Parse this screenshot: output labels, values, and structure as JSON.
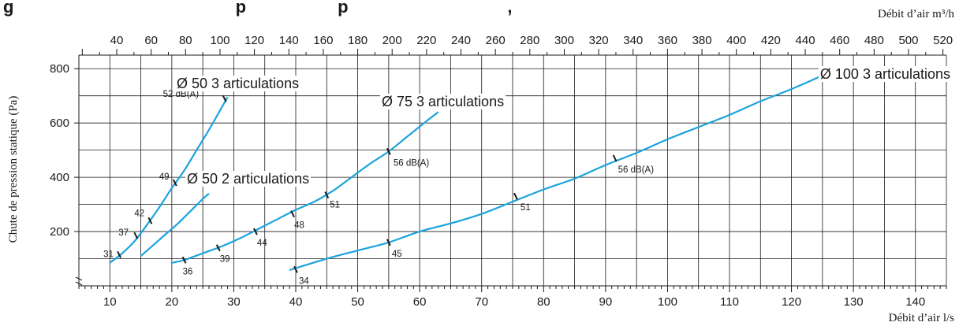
{
  "title_fragment": "g                                              p                   p                                 ,",
  "chart_data": {
    "type": "line",
    "title": "",
    "xlabel": "Débit d’air l/s",
    "ylabel": "Chute de pression statique (Pa)",
    "x2label": "Débit d’air m³/h",
    "xlim": [
      5,
      145
    ],
    "ylim": [
      0,
      850
    ],
    "x_ticks": [
      10,
      20,
      30,
      40,
      50,
      60,
      70,
      80,
      90,
      100,
      110,
      120,
      130,
      140
    ],
    "y_ticks": [
      200,
      400,
      600,
      800
    ],
    "x2_ticks": [
      40,
      60,
      80,
      100,
      120,
      140,
      160,
      180,
      200,
      220,
      240,
      260,
      280,
      300,
      320,
      340,
      360,
      380,
      400,
      420,
      440,
      460,
      480,
      500,
      520
    ],
    "grid": true,
    "line_color": "#1ba4dc",
    "series": [
      {
        "name": "Ø 50 3 articulations",
        "x": [
          10,
          12,
          14,
          16,
          18,
          20,
          22,
          24,
          26,
          28,
          29
        ],
        "y": [
          85,
          120,
          165,
          225,
          290,
          360,
          425,
          500,
          575,
          655,
          695
        ],
        "markers": [
          {
            "x": 11.5,
            "y": 115,
            "label": "31"
          },
          {
            "x": 14.2,
            "y": 185,
            "label": "37"
          },
          {
            "x": 16.5,
            "y": 240,
            "label": "42"
          },
          {
            "x": 20.5,
            "y": 380,
            "label": "49"
          },
          {
            "x": 28.5,
            "y": 690,
            "label": "52 dB(A)"
          }
        ]
      },
      {
        "name": "Ø 50 2 articulations",
        "x": [
          15,
          17,
          19,
          21,
          23,
          25,
          26
        ],
        "y": [
          110,
          150,
          190,
          230,
          275,
          320,
          340
        ],
        "markers": []
      },
      {
        "name": "Ø 75 3 articulations",
        "x": [
          20,
          22,
          25,
          28,
          31,
          34,
          37,
          40,
          43,
          46,
          49,
          52,
          55,
          58,
          61,
          63
        ],
        "y": [
          85,
          95,
          120,
          145,
          175,
          210,
          245,
          280,
          310,
          350,
          400,
          450,
          495,
          550,
          605,
          640
        ],
        "markers": [
          {
            "x": 22,
            "y": 95,
            "label": "36"
          },
          {
            "x": 27.5,
            "y": 140,
            "label": "39"
          },
          {
            "x": 33.5,
            "y": 200,
            "label": "44"
          },
          {
            "x": 39.5,
            "y": 265,
            "label": "48"
          },
          {
            "x": 45,
            "y": 335,
            "label": "51"
          },
          {
            "x": 55,
            "y": 495,
            "label": "56 dB(A)"
          }
        ]
      },
      {
        "name": "Ø 100 3 articulations",
        "x": [
          39,
          45,
          50,
          55,
          60,
          65,
          70,
          75,
          80,
          85,
          90,
          95,
          100,
          105,
          110,
          115,
          120,
          125
        ],
        "y": [
          58,
          100,
          130,
          160,
          200,
          230,
          265,
          310,
          355,
          395,
          445,
          490,
          540,
          585,
          630,
          680,
          725,
          775
        ],
        "markers": [
          {
            "x": 40,
            "y": 60,
            "label": "34"
          },
          {
            "x": 55,
            "y": 160,
            "label": "45"
          },
          {
            "x": 75.5,
            "y": 330,
            "label": "51"
          },
          {
            "x": 91.5,
            "y": 470,
            "label": "56 dB(A)"
          }
        ]
      }
    ]
  }
}
